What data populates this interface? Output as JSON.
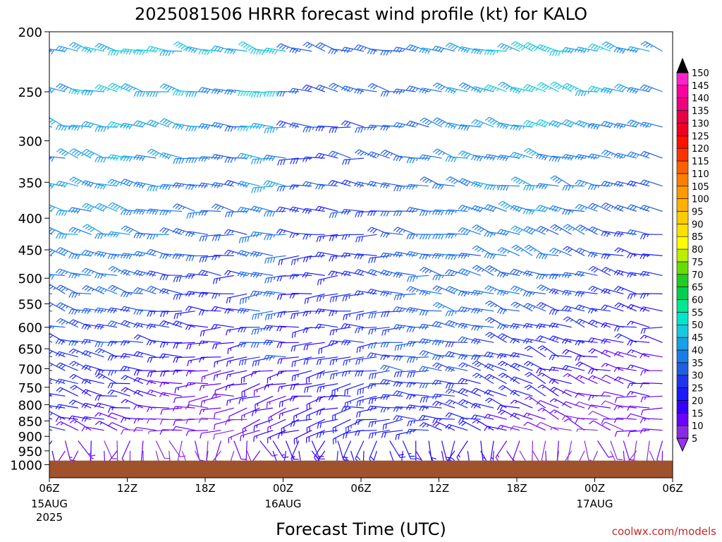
{
  "chart_data": {
    "type": "wind-barb-profile",
    "title": "2025081506 HRRR forecast wind profile (kt) for KALO",
    "xlabel": "Forecast Time (UTC)",
    "ylabel": "",
    "y_axis": {
      "levels_hpa": [
        200,
        250,
        300,
        350,
        400,
        450,
        500,
        550,
        600,
        650,
        700,
        750,
        800,
        850,
        900,
        950,
        1000
      ],
      "scale": "log-pressure",
      "range": [
        200,
        1050
      ]
    },
    "x_axis": {
      "hours_range": [
        0,
        48
      ],
      "ticks": [
        {
          "label": "06Z",
          "date": "15AUG",
          "year": "2025"
        },
        {
          "label": "12Z",
          "date": "",
          "year": ""
        },
        {
          "label": "18Z",
          "date": "",
          "year": ""
        },
        {
          "label": "00Z",
          "date": "16AUG",
          "year": ""
        },
        {
          "label": "06Z",
          "date": "",
          "year": ""
        },
        {
          "label": "12Z",
          "date": "",
          "year": ""
        },
        {
          "label": "18Z",
          "date": "",
          "year": ""
        },
        {
          "label": "00Z",
          "date": "17AUG",
          "year": ""
        },
        {
          "label": "06Z",
          "date": "",
          "year": ""
        }
      ]
    },
    "ground": {
      "color": "#a0522d",
      "pressure_hpa": 985
    },
    "colorbar": {
      "levels": [
        5,
        10,
        15,
        20,
        25,
        30,
        35,
        40,
        45,
        50,
        55,
        60,
        65,
        70,
        75,
        80,
        85,
        90,
        95,
        100,
        105,
        110,
        115,
        120,
        125,
        130,
        135,
        140,
        145,
        150
      ],
      "colors": [
        "#8a2be2",
        "#6a00ff",
        "#3300ff",
        "#1a1aff",
        "#2233ee",
        "#1f5fe0",
        "#1c7ce8",
        "#18a0e8",
        "#16c8e0",
        "#00e5d0",
        "#00e890",
        "#00d050",
        "#22cc22",
        "#66dd00",
        "#bbee00",
        "#ffff00",
        "#ffe000",
        "#ffcc00",
        "#ffb000",
        "#ff9900",
        "#ff7f00",
        "#ff6000",
        "#ff3300",
        "#ff1100",
        "#ee0022",
        "#e60044",
        "#f00080",
        "#ff00a0",
        "#ff22cc",
        "#ff00ff"
      ],
      "under_color": "#9b30ff",
      "over_color": "#000000"
    },
    "grid": false,
    "legend_position": "right"
  },
  "credit": "coolwx.com/models"
}
